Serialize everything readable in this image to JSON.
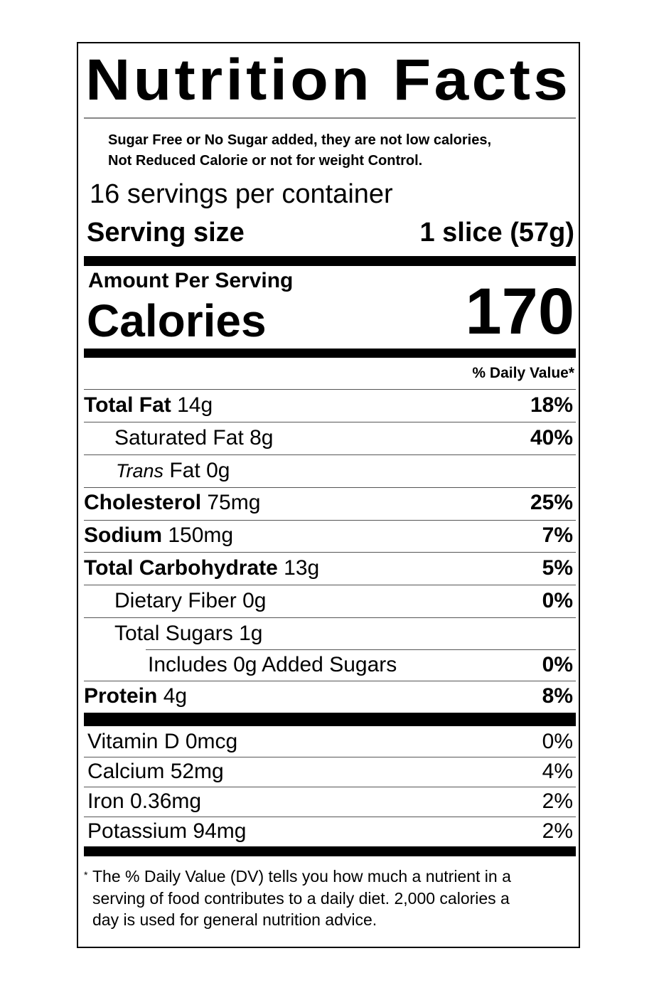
{
  "title": "Nutrition Facts",
  "note": [
    "Sugar Free or No Sugar added, they are not low calories,",
    "Not Reduced Calorie or not for weight Control."
  ],
  "servings_per_container": "16 servings per container",
  "serving_size": {
    "label": "Serving size",
    "value": "1 slice (57g)"
  },
  "amount_per_serving": "Amount Per Serving",
  "calories": {
    "label": "Calories",
    "value": "170"
  },
  "daily_value_header": "% Daily Value*",
  "nutrients": [
    {
      "name": "Total Fat",
      "amount": "14g",
      "dv": "18%"
    },
    {
      "name": "Saturated Fat",
      "amount": "8g",
      "dv": "40%"
    },
    {
      "name_italic": "Trans",
      "name": "Fat",
      "amount": "0g",
      "dv": ""
    },
    {
      "name": "Cholesterol",
      "amount": "75mg",
      "dv": "25%"
    },
    {
      "name": "Sodium",
      "amount": "150mg",
      "dv": "7%"
    },
    {
      "name": "Total Carbohydrate",
      "amount": "13g",
      "dv": "5%"
    },
    {
      "name": "Dietary Fiber",
      "amount": "0g",
      "dv": "0%"
    },
    {
      "name": "Total Sugars",
      "amount": "1g",
      "dv": ""
    },
    {
      "name": "Includes 0g Added Sugars",
      "amount": "",
      "dv": "0%"
    },
    {
      "name": "Protein",
      "amount": "4g",
      "dv": "8%"
    }
  ],
  "vitamins": [
    {
      "label": "Vitamin D 0mcg",
      "dv": "0%"
    },
    {
      "label": "Calcium 52mg",
      "dv": "4%"
    },
    {
      "label": "Iron 0.36mg",
      "dv": "2%"
    },
    {
      "label": "Potassium 94mg",
      "dv": "2%"
    }
  ],
  "footnote": {
    "star": "*",
    "lines": [
      "The % Daily Value (DV) tells you how much a nutrient in a",
      "serving of food contributes to a daily diet. 2,000 calories a",
      "day is used for general nutrition advice."
    ]
  }
}
